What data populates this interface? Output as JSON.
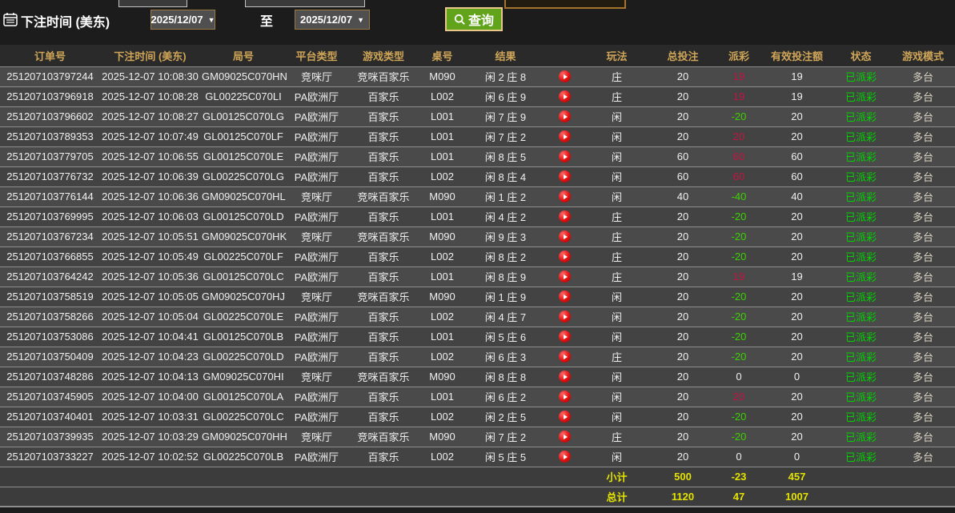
{
  "filter_bar": {
    "label": "下注时间 (美东)",
    "date_from": "2025/12/07",
    "to_label": "至",
    "date_to": "2025/12/07",
    "query_label": "查询",
    "caret": "▼"
  },
  "colors": {
    "header_text": "#cfa558",
    "positive_payout": "#c41442",
    "negative_payout": "#3bd300",
    "status_paid": "#00d300",
    "footer_text": "#e3e300",
    "query_button_bg": "#61a41c",
    "replay_icon": "#e01010"
  },
  "table": {
    "headers": [
      "订单号",
      "下注时间 (美东)",
      "局号",
      "平台类型",
      "游戏类型",
      "桌号",
      "结果",
      "",
      "玩法",
      "总投注",
      "派彩",
      "有效投注额",
      "状态",
      "游戏模式"
    ],
    "rows": [
      [
        "251207103797244",
        "2025-12-07 10:08:30",
        "GM09025C070HN",
        "竞咪厅",
        "竞咪百家乐",
        "M090",
        "闲 2 庄 8",
        "replay",
        "庄",
        "20",
        "19",
        "19",
        "已派彩",
        "多台"
      ],
      [
        "251207103796918",
        "2025-12-07 10:08:28",
        "GL00225C070LI",
        "PA欧洲厅",
        "百家乐",
        "L002",
        "闲 6 庄 9",
        "replay",
        "庄",
        "20",
        "19",
        "19",
        "已派彩",
        "多台"
      ],
      [
        "251207103796602",
        "2025-12-07 10:08:27",
        "GL00125C070LG",
        "PA欧洲厅",
        "百家乐",
        "L001",
        "闲 7 庄 9",
        "replay",
        "闲",
        "20",
        "-20",
        "20",
        "已派彩",
        "多台"
      ],
      [
        "251207103789353",
        "2025-12-07 10:07:49",
        "GL00125C070LF",
        "PA欧洲厅",
        "百家乐",
        "L001",
        "闲 7 庄 2",
        "replay",
        "闲",
        "20",
        "20",
        "20",
        "已派彩",
        "多台"
      ],
      [
        "251207103779705",
        "2025-12-07 10:06:55",
        "GL00125C070LE",
        "PA欧洲厅",
        "百家乐",
        "L001",
        "闲 8 庄 5",
        "replay",
        "闲",
        "60",
        "60",
        "60",
        "已派彩",
        "多台"
      ],
      [
        "251207103776732",
        "2025-12-07 10:06:39",
        "GL00225C070LG",
        "PA欧洲厅",
        "百家乐",
        "L002",
        "闲 8 庄 4",
        "replay",
        "闲",
        "60",
        "60",
        "60",
        "已派彩",
        "多台"
      ],
      [
        "251207103776144",
        "2025-12-07 10:06:36",
        "GM09025C070HL",
        "竞咪厅",
        "竞咪百家乐",
        "M090",
        "闲 1 庄 2",
        "replay",
        "闲",
        "40",
        "-40",
        "40",
        "已派彩",
        "多台"
      ],
      [
        "251207103769995",
        "2025-12-07 10:06:03",
        "GL00125C070LD",
        "PA欧洲厅",
        "百家乐",
        "L001",
        "闲 4 庄 2",
        "replay",
        "庄",
        "20",
        "-20",
        "20",
        "已派彩",
        "多台"
      ],
      [
        "251207103767234",
        "2025-12-07 10:05:51",
        "GM09025C070HK",
        "竞咪厅",
        "竞咪百家乐",
        "M090",
        "闲 9 庄 3",
        "replay",
        "庄",
        "20",
        "-20",
        "20",
        "已派彩",
        "多台"
      ],
      [
        "251207103766855",
        "2025-12-07 10:05:49",
        "GL00225C070LF",
        "PA欧洲厅",
        "百家乐",
        "L002",
        "闲 8 庄 2",
        "replay",
        "庄",
        "20",
        "-20",
        "20",
        "已派彩",
        "多台"
      ],
      [
        "251207103764242",
        "2025-12-07 10:05:36",
        "GL00125C070LC",
        "PA欧洲厅",
        "百家乐",
        "L001",
        "闲 8 庄 9",
        "replay",
        "庄",
        "20",
        "19",
        "19",
        "已派彩",
        "多台"
      ],
      [
        "251207103758519",
        "2025-12-07 10:05:05",
        "GM09025C070HJ",
        "竞咪厅",
        "竞咪百家乐",
        "M090",
        "闲 1 庄 9",
        "replay",
        "闲",
        "20",
        "-20",
        "20",
        "已派彩",
        "多台"
      ],
      [
        "251207103758266",
        "2025-12-07 10:05:04",
        "GL00225C070LE",
        "PA欧洲厅",
        "百家乐",
        "L002",
        "闲 4 庄 7",
        "replay",
        "闲",
        "20",
        "-20",
        "20",
        "已派彩",
        "多台"
      ],
      [
        "251207103753086",
        "2025-12-07 10:04:41",
        "GL00125C070LB",
        "PA欧洲厅",
        "百家乐",
        "L001",
        "闲 5 庄 6",
        "replay",
        "闲",
        "20",
        "-20",
        "20",
        "已派彩",
        "多台"
      ],
      [
        "251207103750409",
        "2025-12-07 10:04:23",
        "GL00225C070LD",
        "PA欧洲厅",
        "百家乐",
        "L002",
        "闲 6 庄 3",
        "replay",
        "庄",
        "20",
        "-20",
        "20",
        "已派彩",
        "多台"
      ],
      [
        "251207103748286",
        "2025-12-07 10:04:13",
        "GM09025C070HI",
        "竞咪厅",
        "竞咪百家乐",
        "M090",
        "闲 8 庄 8",
        "replay",
        "闲",
        "20",
        "0",
        "0",
        "已派彩",
        "多台"
      ],
      [
        "251207103745905",
        "2025-12-07 10:04:00",
        "GL00125C070LA",
        "PA欧洲厅",
        "百家乐",
        "L001",
        "闲 6 庄 2",
        "replay",
        "闲",
        "20",
        "20",
        "20",
        "已派彩",
        "多台"
      ],
      [
        "251207103740401",
        "2025-12-07 10:03:31",
        "GL00225C070LC",
        "PA欧洲厅",
        "百家乐",
        "L002",
        "闲 2 庄 5",
        "replay",
        "闲",
        "20",
        "-20",
        "20",
        "已派彩",
        "多台"
      ],
      [
        "251207103739935",
        "2025-12-07 10:03:29",
        "GM09025C070HH",
        "竞咪厅",
        "竞咪百家乐",
        "M090",
        "闲 7 庄 2",
        "replay",
        "庄",
        "20",
        "-20",
        "20",
        "已派彩",
        "多台"
      ],
      [
        "251207103733227",
        "2025-12-07 10:02:52",
        "GL00225C070LB",
        "PA欧洲厅",
        "百家乐",
        "L002",
        "闲 5 庄 5",
        "replay",
        "闲",
        "20",
        "0",
        "0",
        "已派彩",
        "多台"
      ]
    ],
    "footer": [
      {
        "label": "小计",
        "total_bet": "500",
        "payout": "-23",
        "valid_bet": "457"
      },
      {
        "label": "总计",
        "total_bet": "1120",
        "payout": "47",
        "valid_bet": "1007"
      }
    ]
  }
}
